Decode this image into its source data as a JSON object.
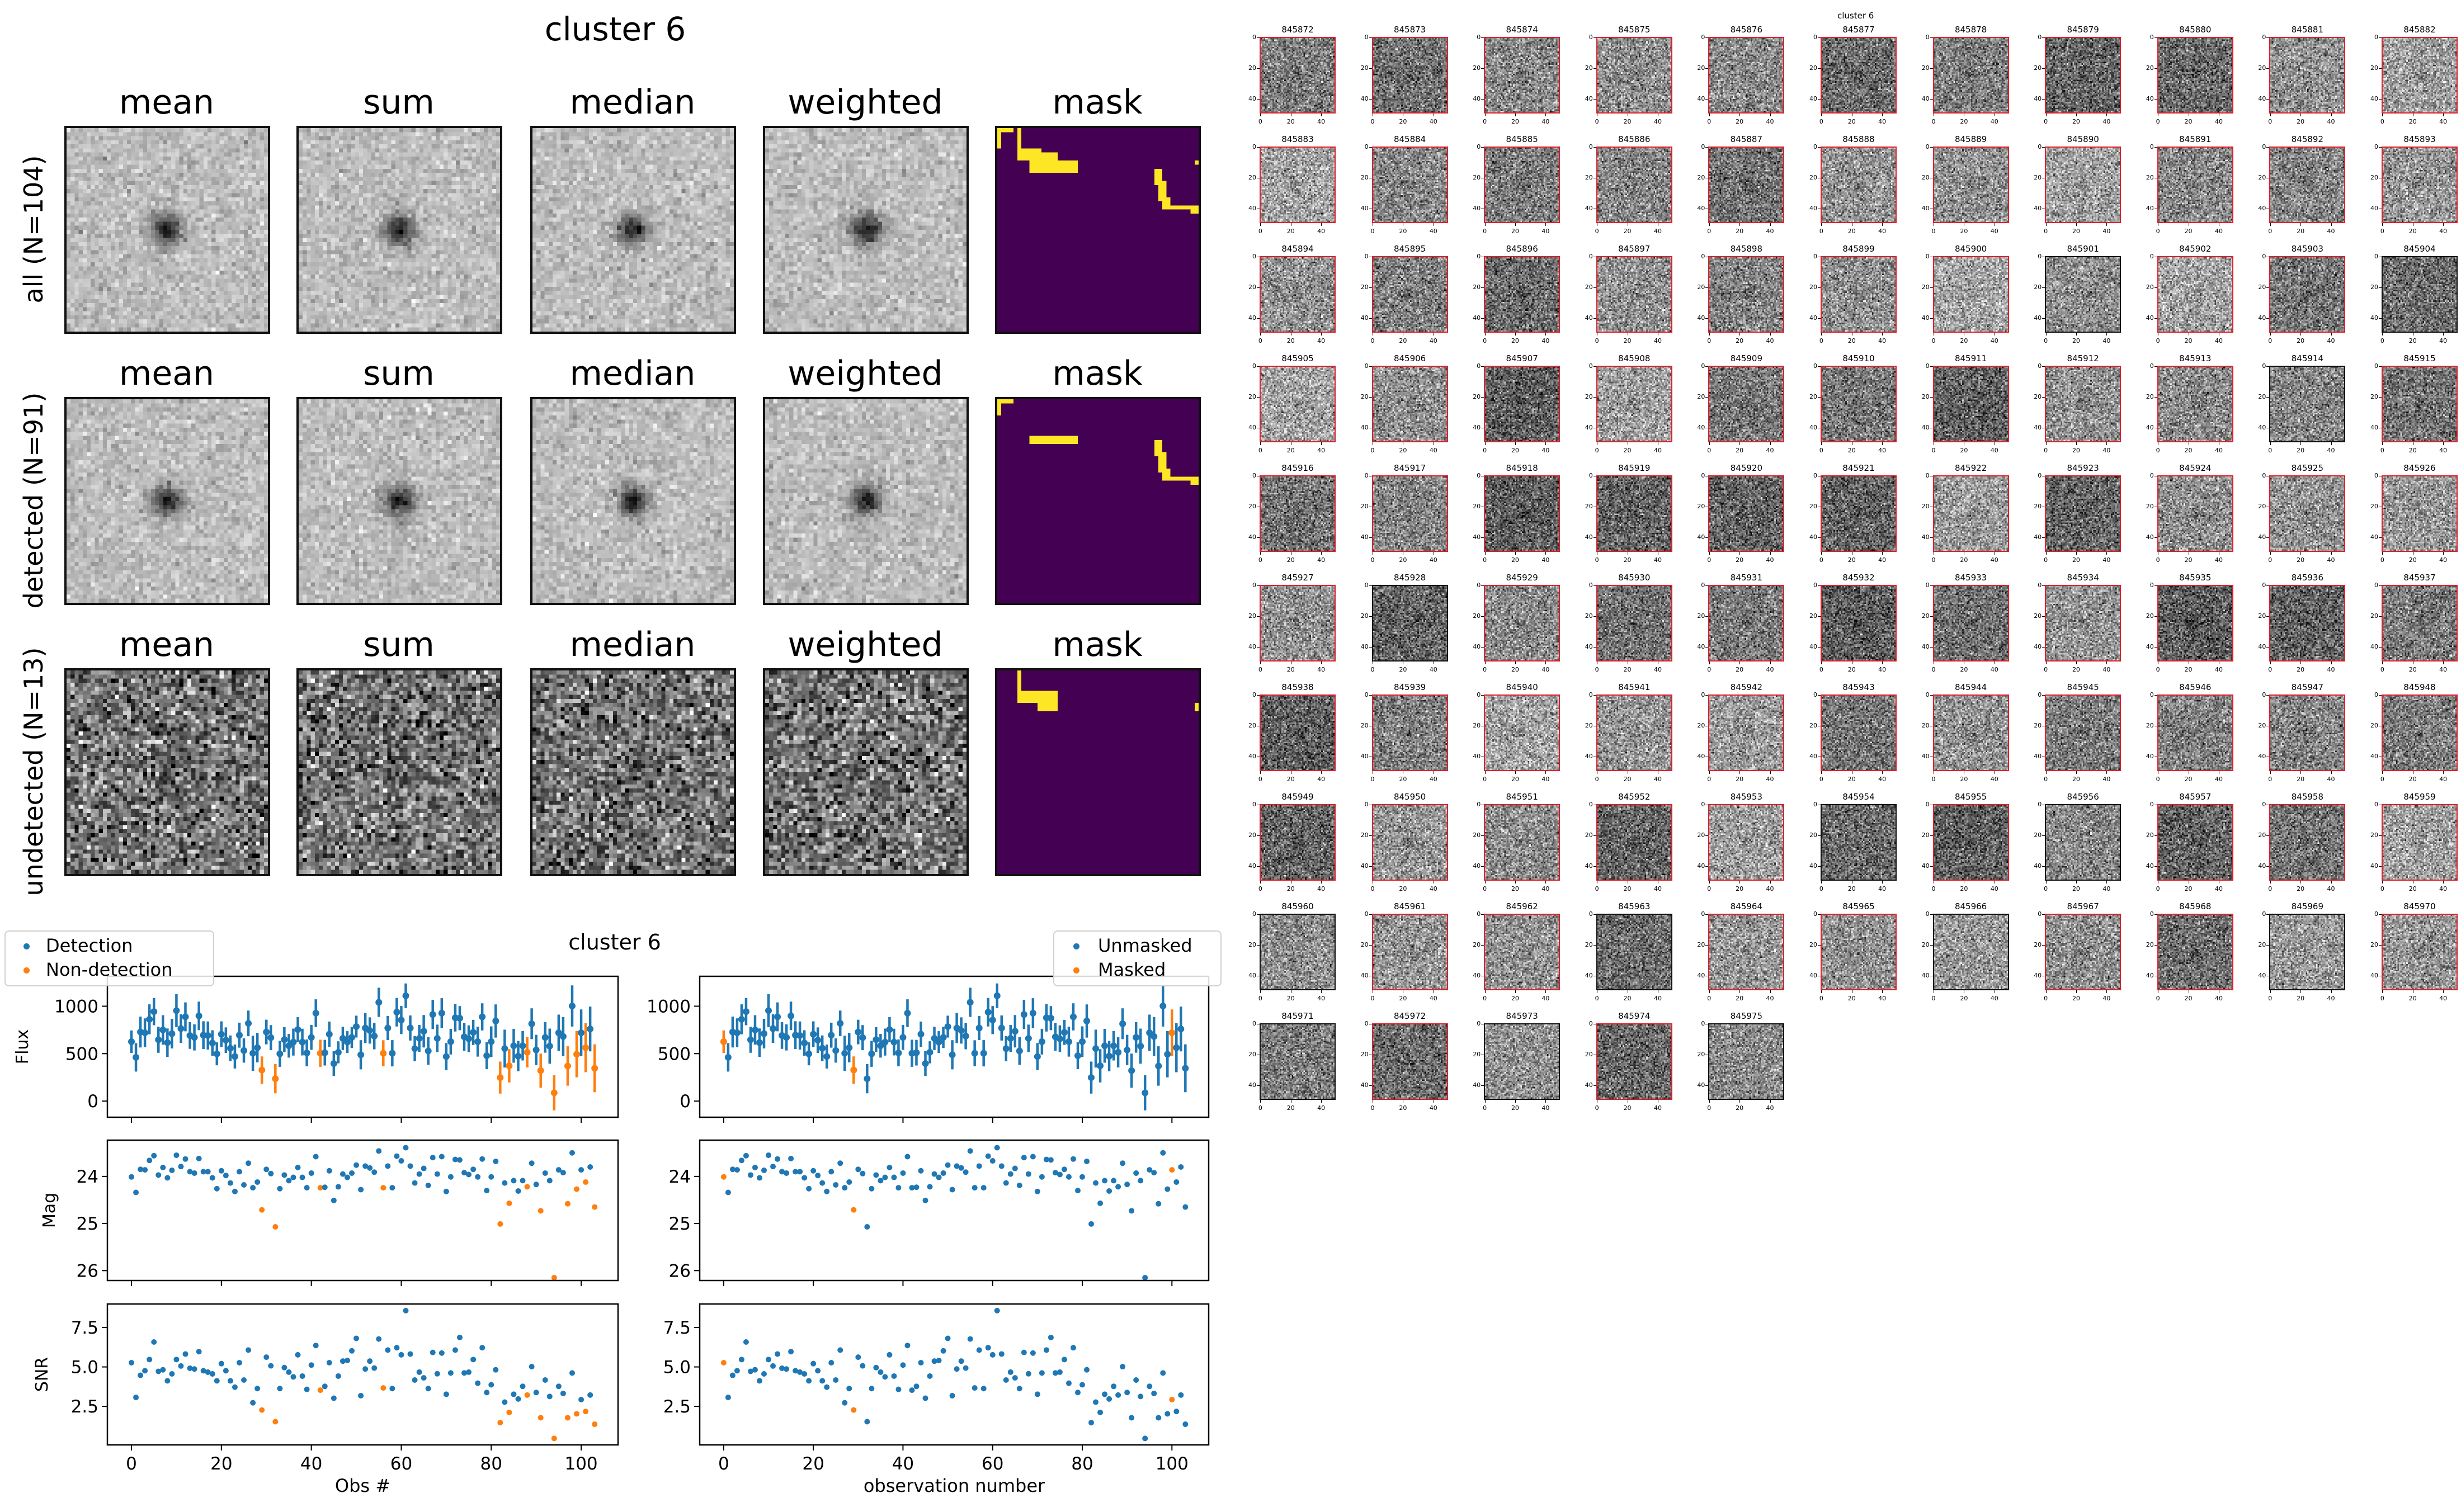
{
  "stacks": {
    "title": "cluster 6",
    "column_titles": [
      "mean",
      "sum",
      "median",
      "weighted",
      "mask"
    ],
    "rows": [
      {
        "label": "all (N=104)",
        "kind": "all"
      },
      {
        "label": "detected (N=91)",
        "kind": "detected"
      },
      {
        "label": "undetected (N=13)",
        "kind": "undetected"
      }
    ],
    "mask_colors": {
      "background": "#440154",
      "masked": "#fde725"
    },
    "mask_regions_pixel_grid": [
      [
        [
          0,
          0,
          4,
          1
        ],
        [
          0,
          0,
          1,
          5
        ],
        [
          5,
          0,
          1,
          8
        ],
        [
          5,
          5,
          6,
          3
        ],
        [
          8,
          8,
          12,
          3
        ],
        [
          11,
          6,
          4,
          4
        ],
        [
          39,
          10,
          2,
          4
        ],
        [
          40,
          13,
          2,
          5
        ],
        [
          41,
          17,
          2,
          3
        ],
        [
          43,
          19,
          7,
          1
        ],
        [
          48,
          19,
          2,
          2
        ],
        [
          49,
          8,
          1,
          1
        ]
      ],
      [
        [
          0,
          0,
          4,
          1
        ],
        [
          0,
          0,
          1,
          4
        ],
        [
          8,
          9,
          12,
          2
        ],
        [
          39,
          10,
          2,
          4
        ],
        [
          40,
          13,
          2,
          5
        ],
        [
          41,
          17,
          2,
          3
        ],
        [
          43,
          19,
          7,
          1
        ],
        [
          48,
          19,
          2,
          2
        ]
      ],
      [
        [
          5,
          0,
          1,
          7
        ],
        [
          5,
          5,
          6,
          3
        ],
        [
          10,
          5,
          5,
          5
        ],
        [
          49,
          8,
          1,
          2
        ]
      ]
    ]
  },
  "thumbnails": {
    "suptitle": "cluster 6",
    "ids": [
      "845872",
      "845873",
      "845874",
      "845875",
      "845876",
      "845877",
      "845878",
      "845879",
      "845880",
      "845881",
      "845882",
      "845883",
      "845884",
      "845885",
      "845886",
      "845887",
      "845888",
      "845889",
      "845890",
      "845891",
      "845892",
      "845893",
      "845894",
      "845895",
      "845896",
      "845897",
      "845898",
      "845899",
      "845900",
      "845901",
      "845902",
      "845903",
      "845904",
      "845905",
      "845906",
      "845907",
      "845908",
      "845909",
      "845910",
      "845911",
      "845912",
      "845913",
      "845914",
      "845915",
      "845916",
      "845917",
      "845918",
      "845919",
      "845920",
      "845921",
      "845922",
      "845923",
      "845924",
      "845925",
      "845926",
      "845927",
      "845928",
      "845929",
      "845930",
      "845931",
      "845932",
      "845933",
      "845934",
      "845935",
      "845936",
      "845937",
      "845938",
      "845939",
      "845940",
      "845941",
      "845942",
      "845943",
      "845944",
      "845945",
      "845946",
      "845947",
      "845948",
      "845949",
      "845950",
      "845951",
      "845952",
      "845953",
      "845954",
      "845955",
      "845956",
      "845957",
      "845958",
      "845959",
      "845960",
      "845961",
      "845962",
      "845963",
      "845964",
      "845965",
      "845966",
      "845967",
      "845968",
      "845969",
      "845970",
      "845971",
      "845972",
      "845973",
      "845974",
      "845975"
    ],
    "tick_labels": [
      "0",
      "20",
      "40"
    ],
    "detected_border_color": "#e0202a",
    "undetected_border_color": "#111111"
  },
  "chart_data": {
    "type": "scatter",
    "title": "cluster 6",
    "colors": {
      "blue": "#1f77b4",
      "orange": "#ff7f0e"
    },
    "x": [
      0,
      1,
      2,
      3,
      4,
      5,
      6,
      7,
      8,
      9,
      10,
      11,
      12,
      13,
      14,
      15,
      16,
      17,
      18,
      19,
      20,
      21,
      22,
      23,
      24,
      25,
      26,
      27,
      28,
      29,
      30,
      31,
      32,
      33,
      34,
      35,
      36,
      37,
      38,
      39,
      40,
      41,
      42,
      43,
      44,
      45,
      46,
      47,
      48,
      49,
      50,
      51,
      52,
      53,
      54,
      55,
      56,
      57,
      58,
      59,
      60,
      61,
      62,
      63,
      64,
      65,
      66,
      67,
      68,
      69,
      70,
      71,
      72,
      73,
      74,
      75,
      76,
      77,
      78,
      79,
      80,
      81,
      82,
      83,
      84,
      85,
      86,
      87,
      88,
      89,
      90,
      91,
      92,
      93,
      94,
      95,
      96,
      97,
      98,
      99,
      100,
      101,
      102,
      103
    ],
    "xlim": [
      -5.35,
      108.2
    ],
    "xticks": [
      0,
      20,
      40,
      60,
      80,
      100
    ],
    "xtick_labels": [
      "0",
      "20",
      "40",
      "60",
      "80",
      "100"
    ],
    "flux": [
      626,
      461,
      728,
      720,
      862,
      943,
      646,
      750,
      616,
      711,
      953,
      764,
      888,
      691,
      671,
      898,
      695,
      691,
      612,
      498,
      705,
      642,
      557,
      470,
      695,
      533,
      819,
      504,
      563,
      327,
      728,
      669,
      236,
      498,
      648,
      583,
      622,
      754,
      622,
      508,
      671,
      927,
      504,
      510,
      705,
      396,
      514,
      661,
      622,
      671,
      785,
      488,
      770,
      744,
      685,
      1041,
      504,
      770,
      504,
      937,
      854,
      1110,
      770,
      553,
      661,
      736,
      528,
      913,
      661,
      927,
      469,
      626,
      878,
      874,
      677,
      657,
      724,
      626,
      888,
      478,
      626,
      844,
      248,
      553,
      372,
      583,
      474,
      583,
      514,
      815,
      539,
      321,
      671,
      579,
      87,
      720,
      681,
      370,
      1002,
      494,
      720,
      563,
      760,
      346
    ],
    "snr": [
      5.27,
      3.07,
      4.47,
      4.76,
      5.47,
      6.58,
      4.72,
      4.82,
      4.12,
      4.56,
      5.47,
      5.06,
      5.82,
      4.92,
      4.87,
      5.97,
      4.76,
      4.67,
      4.56,
      4.12,
      5.21,
      4.76,
      4.12,
      3.72,
      5.27,
      4.17,
      6.07,
      2.73,
      3.63,
      2.27,
      5.62,
      5.07,
      1.53,
      3.63,
      4.96,
      4.67,
      4.37,
      5.77,
      4.42,
      3.58,
      5.12,
      6.36,
      3.53,
      3.77,
      5.27,
      3.02,
      4.42,
      5.37,
      5.41,
      6.02,
      6.81,
      3.18,
      4.87,
      5.37,
      4.93,
      6.77,
      3.67,
      6.07,
      3.63,
      6.22,
      5.77,
      8.57,
      5.82,
      4.17,
      4.67,
      4.31,
      3.63,
      5.92,
      4.57,
      5.88,
      3.27,
      4.62,
      6.07,
      6.87,
      4.62,
      4.67,
      5.47,
      3.97,
      6.22,
      3.38,
      3.87,
      4.82,
      1.47,
      2.77,
      2.12,
      3.27,
      2.97,
      3.77,
      3.22,
      5.02,
      3.38,
      1.78,
      4.17,
      3.13,
      0.47,
      3.77,
      3.32,
      1.78,
      4.62,
      2.03,
      2.93,
      2.18,
      3.22,
      1.37
    ],
    "mag": [
      24.01,
      24.34,
      23.85,
      23.86,
      23.66,
      23.56,
      23.97,
      23.81,
      24.03,
      23.87,
      23.55,
      23.79,
      23.63,
      23.9,
      23.93,
      23.62,
      23.9,
      23.9,
      24.03,
      24.26,
      23.88,
      23.98,
      24.14,
      24.32,
      23.9,
      24.18,
      23.72,
      24.24,
      24.12,
      24.71,
      23.85,
      23.94,
      25.07,
      24.26,
      23.97,
      24.09,
      24.02,
      23.81,
      24.02,
      24.24,
      23.93,
      23.58,
      24.24,
      24.23,
      23.88,
      24.51,
      24.22,
      23.95,
      24.02,
      23.93,
      23.76,
      24.28,
      23.78,
      23.82,
      23.91,
      23.46,
      24.24,
      23.78,
      24.24,
      23.57,
      23.67,
      23.39,
      23.78,
      24.14,
      23.95,
      23.83,
      24.19,
      23.6,
      23.95,
      23.58,
      24.32,
      24.01,
      23.64,
      23.65,
      23.92,
      23.96,
      23.85,
      24.01,
      23.63,
      24.3,
      24.01,
      23.68,
      25.01,
      24.14,
      24.57,
      24.09,
      24.31,
      24.09,
      24.22,
      23.72,
      24.17,
      24.73,
      23.93,
      24.09,
      26.15,
      23.86,
      23.92,
      24.58,
      23.5,
      24.27,
      23.86,
      24.12,
      23.8,
      24.65
    ],
    "non_detection_indices": [
      29,
      32,
      42,
      56,
      82,
      84,
      88,
      91,
      94,
      97,
      99,
      101,
      103
    ],
    "masked_indices": [
      0,
      29,
      100
    ],
    "panels": [
      {
        "key": "flux",
        "ylabel": "Flux",
        "ylim": [
          -170,
          1315
        ],
        "yticks": [
          0,
          500,
          1000
        ],
        "ytick_labels": [
          "0",
          "500",
          "1000"
        ],
        "errorbars": true
      },
      {
        "key": "mag",
        "ylabel": "Mag",
        "ylim": [
          26.21,
          23.23
        ],
        "inverted": true,
        "yticks": [
          24,
          25,
          26
        ],
        "ytick_labels": [
          "24",
          "25",
          "26"
        ]
      },
      {
        "key": "snr",
        "ylabel": "SNR",
        "ylim": [
          0.06,
          8.99
        ],
        "yticks": [
          2.5,
          5.0,
          7.5
        ],
        "ytick_labels": [
          "2.5",
          "5.0",
          "7.5"
        ]
      }
    ],
    "columns": [
      {
        "split": "detection",
        "xlabel": "Obs #",
        "legend": {
          "placement": "upper-left",
          "entries": [
            "Detection",
            "Non-detection"
          ]
        }
      },
      {
        "split": "mask",
        "xlabel": "observation number",
        "legend": {
          "placement": "upper-right",
          "entries": [
            "Unmasked",
            "Masked"
          ]
        }
      }
    ]
  }
}
